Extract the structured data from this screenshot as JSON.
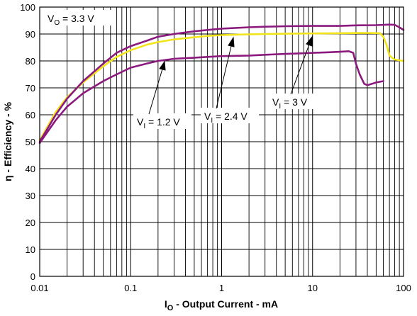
{
  "chart_data": {
    "type": "line",
    "x_scale": "log",
    "xlim": [
      0.01,
      100
    ],
    "ylim": [
      0,
      100
    ],
    "grid": true,
    "x_ticks": [
      {
        "value": 0.01,
        "label": "0.01"
      },
      {
        "value": 0.1,
        "label": "0.1"
      },
      {
        "value": 1,
        "label": "1"
      },
      {
        "value": 10,
        "label": "10"
      },
      {
        "value": 100,
        "label": "100"
      }
    ],
    "y_ticks": [
      {
        "value": 0,
        "label": "0"
      },
      {
        "value": 10,
        "label": "10"
      },
      {
        "value": 20,
        "label": "20"
      },
      {
        "value": 30,
        "label": "30"
      },
      {
        "value": 40,
        "label": "40"
      },
      {
        "value": 50,
        "label": "50"
      },
      {
        "value": 60,
        "label": "60"
      },
      {
        "value": 70,
        "label": "70"
      },
      {
        "value": 80,
        "label": "80"
      },
      {
        "value": 90,
        "label": "90"
      },
      {
        "value": 100,
        "label": "100"
      }
    ],
    "xlabel": {
      "main": "I",
      "sub": "O",
      "rest": " - Output Current - mA"
    },
    "ylabel": "η - Efficiency - %",
    "condition": {
      "main": "V",
      "sub": "O",
      "rest": " = 3.3 V"
    },
    "colors": {
      "purple": "#8b1a7e",
      "yellow": "#f2e41a"
    },
    "series": [
      {
        "color": "#8b1a7e",
        "points": [
          [
            0.01,
            49.5
          ],
          [
            0.015,
            58
          ],
          [
            0.02,
            63
          ],
          [
            0.03,
            68
          ],
          [
            0.05,
            72.5
          ],
          [
            0.07,
            75
          ],
          [
            0.1,
            77.5
          ],
          [
            0.15,
            79
          ],
          [
            0.2,
            80
          ],
          [
            0.3,
            80.8
          ],
          [
            0.5,
            81.2
          ],
          [
            0.7,
            81.5
          ],
          [
            1,
            81.8
          ],
          [
            2,
            82
          ],
          [
            3,
            82.3
          ],
          [
            5,
            82.6
          ],
          [
            7,
            82.8
          ],
          [
            10,
            83
          ],
          [
            15,
            83.2
          ],
          [
            20,
            83.4
          ],
          [
            25,
            83.6
          ],
          [
            28,
            83
          ],
          [
            30,
            79
          ],
          [
            33,
            75
          ],
          [
            37,
            71.5
          ],
          [
            40,
            71
          ],
          [
            45,
            71.5
          ],
          [
            50,
            72
          ],
          [
            60,
            72.5
          ]
        ]
      },
      {
        "color": "#f2e41a",
        "points": [
          [
            0.01,
            50.5
          ],
          [
            0.015,
            61
          ],
          [
            0.02,
            66.5
          ],
          [
            0.03,
            72
          ],
          [
            0.05,
            78
          ],
          [
            0.07,
            81.5
          ],
          [
            0.1,
            84
          ],
          [
            0.15,
            86
          ],
          [
            0.2,
            87
          ],
          [
            0.3,
            88
          ],
          [
            0.5,
            88.8
          ],
          [
            0.7,
            89.3
          ],
          [
            1,
            89.6
          ],
          [
            2,
            89.9
          ],
          [
            3,
            90
          ],
          [
            5,
            90.1
          ],
          [
            10,
            90.2
          ],
          [
            20,
            90.3
          ],
          [
            40,
            90.4
          ],
          [
            55,
            90.3
          ],
          [
            60,
            89
          ],
          [
            65,
            86
          ],
          [
            70,
            82
          ],
          [
            80,
            80.5
          ],
          [
            100,
            80
          ]
        ]
      },
      {
        "color": "#8b1a7e",
        "points": [
          [
            0.01,
            50
          ],
          [
            0.015,
            60
          ],
          [
            0.02,
            66
          ],
          [
            0.03,
            72.5
          ],
          [
            0.05,
            79
          ],
          [
            0.07,
            83
          ],
          [
            0.1,
            85.5
          ],
          [
            0.15,
            87.5
          ],
          [
            0.2,
            89
          ],
          [
            0.3,
            90
          ],
          [
            0.5,
            91
          ],
          [
            0.7,
            91.5
          ],
          [
            1,
            92
          ],
          [
            2,
            92.5
          ],
          [
            3,
            92.7
          ],
          [
            5,
            92.9
          ],
          [
            10,
            93
          ],
          [
            20,
            93
          ],
          [
            30,
            93.2
          ],
          [
            50,
            93.3
          ],
          [
            70,
            93.5
          ],
          [
            80,
            93.4
          ],
          [
            90,
            92.5
          ],
          [
            100,
            91.5
          ]
        ]
      }
    ],
    "annotations": [
      {
        "main": "V",
        "sub": "I",
        "rest": " = 1.2 V"
      },
      {
        "main": "V",
        "sub": "I",
        "rest": " = 2.4 V"
      },
      {
        "main": "V",
        "sub": "I",
        "rest": " = 3 V"
      }
    ]
  }
}
